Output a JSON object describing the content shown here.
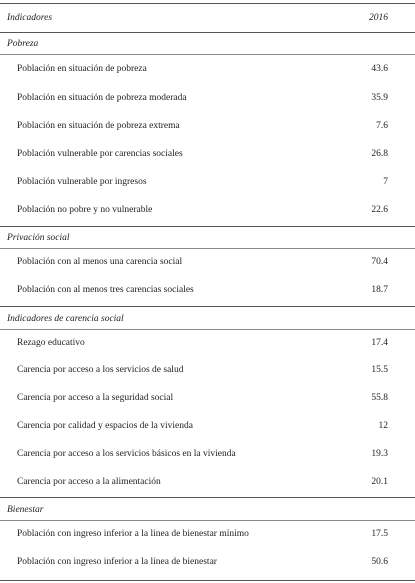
{
  "header": {
    "label": "Indicadores",
    "year": "2016"
  },
  "sections": [
    {
      "title": "Pobreza",
      "rows": [
        {
          "label": "Población en situación de pobreza",
          "value": "43.6"
        },
        {
          "label": "Población en situación de pobreza moderada",
          "value": "35.9"
        },
        {
          "label": "Población en situación de pobreza extrema",
          "value": "7.6"
        },
        {
          "label": "Población vulnerable por carencias sociales",
          "value": "26.8"
        },
        {
          "label": "Población vulnerable por ingresos",
          "value": "7"
        },
        {
          "label": "Población no pobre y no vulnerable",
          "value": "22.6"
        }
      ]
    },
    {
      "title": "Privación social",
      "rows": [
        {
          "label": "Población con al menos una carencia social",
          "value": "70.4"
        },
        {
          "label": "Población con al menos tres carencias sociales",
          "value": "18.7"
        }
      ]
    },
    {
      "title": "Indicadores de carencia social",
      "rows": [
        {
          "label": "Rezago educativo",
          "value": "17.4"
        },
        {
          "label": "Carencia por acceso a los servicios de salud",
          "value": "15.5"
        },
        {
          "label": "Carencia por acceso a la seguridad social",
          "value": "55.8"
        },
        {
          "label": "Carencia por calidad y espacios de la vivienda",
          "value": "12"
        },
        {
          "label": "Carencia por acceso a los servicios básicos en la vivienda",
          "value": "19.3"
        },
        {
          "label": "Carencia por acceso a la alimentación",
          "value": "20.1"
        }
      ]
    },
    {
      "title": "Bienestar",
      "rows": [
        {
          "label": "Población con ingreso inferior a la línea de bienestar mínimo",
          "value": "17.5"
        },
        {
          "label": "Población con ingreso inferior a la línea de bienestar",
          "value": "50.6"
        }
      ]
    }
  ]
}
